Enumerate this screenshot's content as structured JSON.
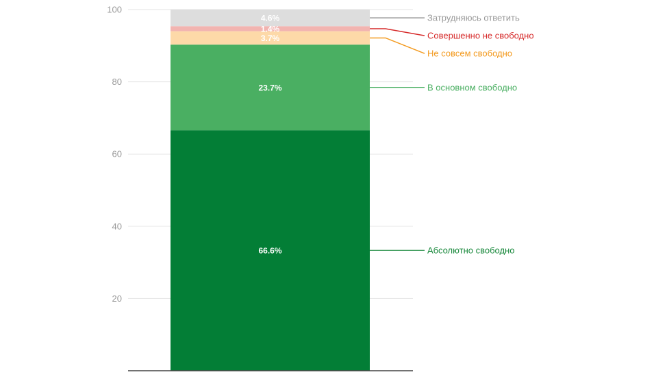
{
  "chart_data": {
    "type": "bar",
    "stacked": true,
    "ylim": [
      0,
      100
    ],
    "yticks": [
      20,
      40,
      60,
      80,
      100
    ],
    "tick_labels": [
      "20",
      "40",
      "60",
      "80",
      "100"
    ],
    "grid": true,
    "legend_placement": "right",
    "series": [
      {
        "name": "Абсолютно свободно",
        "value": 66.6,
        "label": "66.6%",
        "color": "#037e36",
        "label_color": "#ffffff",
        "legend_color": "#1b8a3e"
      },
      {
        "name": "В основном свободно",
        "value": 23.7,
        "label": "23.7%",
        "color": "#4aaf62",
        "label_color": "#ffffff",
        "legend_color": "#4aaf62"
      },
      {
        "name": "Не совсем свободно",
        "value": 3.7,
        "label": "3.7%",
        "color": "#fdd9a8",
        "label_color": "#ffffff",
        "legend_color": "#f39a1f"
      },
      {
        "name": "Совершенно не свободно",
        "value": 1.4,
        "label": "1.4%",
        "color": "#f2b4b0",
        "label_color": "#ffffff",
        "legend_color": "#d62a2a"
      },
      {
        "name": "Затрудняюсь ответить",
        "value": 4.6,
        "label": "4.6%",
        "color": "#dddddd",
        "label_color": "#ffffff",
        "legend_color": "#999999"
      }
    ]
  }
}
